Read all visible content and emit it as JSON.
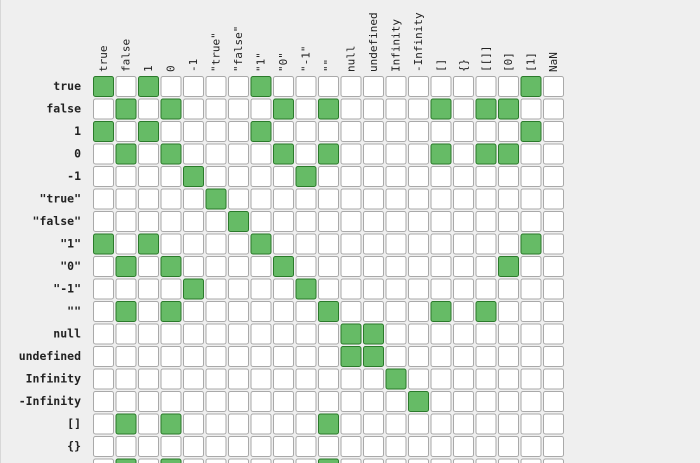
{
  "chart_data": {
    "type": "heatmap",
    "title": "",
    "xlabel": "",
    "ylabel": "",
    "columns": [
      "true",
      "false",
      "1",
      "0",
      "-1",
      "\"true\"",
      "\"false\"",
      "\"1\"",
      "\"0\"",
      "\"-1\"",
      "\"\"",
      "null",
      "undefined",
      "Infinity",
      "-Infinity",
      "[]",
      "{}",
      "[[]]",
      "[0]",
      "[1]",
      "NaN"
    ],
    "rows": [
      "true",
      "false",
      "1",
      "0",
      "-1",
      "\"true\"",
      "\"false\"",
      "\"1\"",
      "\"0\"",
      "\"-1\"",
      "\"\"",
      "null",
      "undefined",
      "Infinity",
      "-Infinity",
      "[]",
      "{}",
      "[[]]"
    ],
    "values": [
      [
        1,
        0,
        1,
        0,
        0,
        0,
        0,
        1,
        0,
        0,
        0,
        0,
        0,
        0,
        0,
        0,
        0,
        0,
        0,
        1,
        0
      ],
      [
        0,
        1,
        0,
        1,
        0,
        0,
        0,
        0,
        1,
        0,
        1,
        0,
        0,
        0,
        0,
        1,
        0,
        1,
        1,
        0,
        0
      ],
      [
        1,
        0,
        1,
        0,
        0,
        0,
        0,
        1,
        0,
        0,
        0,
        0,
        0,
        0,
        0,
        0,
        0,
        0,
        0,
        1,
        0
      ],
      [
        0,
        1,
        0,
        1,
        0,
        0,
        0,
        0,
        1,
        0,
        1,
        0,
        0,
        0,
        0,
        1,
        0,
        1,
        1,
        0,
        0
      ],
      [
        0,
        0,
        0,
        0,
        1,
        0,
        0,
        0,
        0,
        1,
        0,
        0,
        0,
        0,
        0,
        0,
        0,
        0,
        0,
        0,
        0
      ],
      [
        0,
        0,
        0,
        0,
        0,
        1,
        0,
        0,
        0,
        0,
        0,
        0,
        0,
        0,
        0,
        0,
        0,
        0,
        0,
        0,
        0
      ],
      [
        0,
        0,
        0,
        0,
        0,
        0,
        1,
        0,
        0,
        0,
        0,
        0,
        0,
        0,
        0,
        0,
        0,
        0,
        0,
        0,
        0
      ],
      [
        1,
        0,
        1,
        0,
        0,
        0,
        0,
        1,
        0,
        0,
        0,
        0,
        0,
        0,
        0,
        0,
        0,
        0,
        0,
        1,
        0
      ],
      [
        0,
        1,
        0,
        1,
        0,
        0,
        0,
        0,
        1,
        0,
        0,
        0,
        0,
        0,
        0,
        0,
        0,
        0,
        1,
        0,
        0
      ],
      [
        0,
        0,
        0,
        0,
        1,
        0,
        0,
        0,
        0,
        1,
        0,
        0,
        0,
        0,
        0,
        0,
        0,
        0,
        0,
        0,
        0
      ],
      [
        0,
        1,
        0,
        1,
        0,
        0,
        0,
        0,
        0,
        0,
        1,
        0,
        0,
        0,
        0,
        1,
        0,
        1,
        0,
        0,
        0
      ],
      [
        0,
        0,
        0,
        0,
        0,
        0,
        0,
        0,
        0,
        0,
        0,
        1,
        1,
        0,
        0,
        0,
        0,
        0,
        0,
        0,
        0
      ],
      [
        0,
        0,
        0,
        0,
        0,
        0,
        0,
        0,
        0,
        0,
        0,
        1,
        1,
        0,
        0,
        0,
        0,
        0,
        0,
        0,
        0
      ],
      [
        0,
        0,
        0,
        0,
        0,
        0,
        0,
        0,
        0,
        0,
        0,
        0,
        0,
        1,
        0,
        0,
        0,
        0,
        0,
        0,
        0
      ],
      [
        0,
        0,
        0,
        0,
        0,
        0,
        0,
        0,
        0,
        0,
        0,
        0,
        0,
        0,
        1,
        0,
        0,
        0,
        0,
        0,
        0
      ],
      [
        0,
        1,
        0,
        1,
        0,
        0,
        0,
        0,
        0,
        0,
        1,
        0,
        0,
        0,
        0,
        0,
        0,
        0,
        0,
        0,
        0
      ],
      [
        0,
        0,
        0,
        0,
        0,
        0,
        0,
        0,
        0,
        0,
        0,
        0,
        0,
        0,
        0,
        0,
        0,
        0,
        0,
        0,
        0
      ],
      [
        0,
        1,
        0,
        1,
        0,
        0,
        0,
        0,
        0,
        0,
        1,
        0,
        0,
        0,
        0,
        0,
        0,
        0,
        0,
        0,
        0
      ]
    ],
    "grid": true,
    "colors": {
      "true_fill": "#66bb66",
      "true_stroke": "#2b7a2b",
      "false_fill": "#ffffff",
      "false_stroke": "#a9a9a9",
      "label_color": "#222222",
      "background": "#efefef"
    }
  }
}
